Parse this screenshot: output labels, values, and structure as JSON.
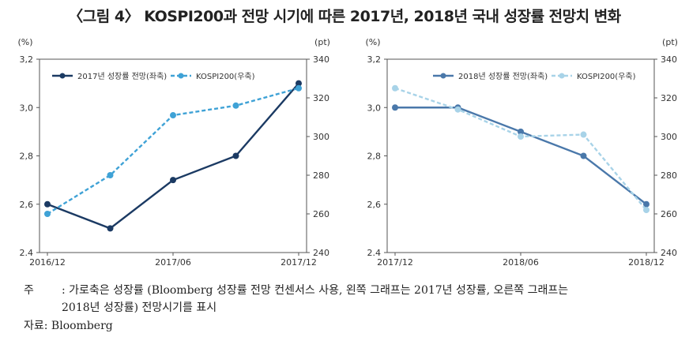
{
  "title": "〈그림 4〉 KOSPI200과 전망 시기에 따른 2017년, 2018년 국내 성장률 전망치 변화",
  "note_label": "주",
  "note_line1": ": 가로축은 성장률 (Bloomberg 성장률 전망 컨센서스 사용, 왼쪽 그래프는 2017년 성장률, 오른쪽 그래프는",
  "note_line2": "2018년 성장률) 전망시기를 표시",
  "source": "자료: Bloomberg",
  "colors": {
    "dark": "#1b3a63",
    "light": "#3fa2d6",
    "mid": "#4a78aa",
    "pale": "#a8d3e8",
    "axis": "#555555"
  },
  "chart_data": [
    {
      "type": "line",
      "left_unit": "(%)",
      "right_unit": "(pt)",
      "ylim_left": [
        2.4,
        3.2
      ],
      "ylim_right": [
        240,
        340
      ],
      "left_ticks": [
        "2.4",
        "2,6",
        "2,8",
        "3,0",
        "3,2"
      ],
      "right_ticks": [
        "240",
        "260",
        "280",
        "300",
        "320",
        "340"
      ],
      "x_tick_labels": [
        "2016/12",
        "2017/06",
        "2017/12"
      ],
      "legend_position": "top-left",
      "series": [
        {
          "name": "2017년 성장률 전망(좌축)",
          "axis": "left",
          "style": "solid",
          "x": [
            "2016/12",
            "2017/03",
            "2017/06",
            "2017/09",
            "2017/12"
          ],
          "values": [
            2.6,
            2.5,
            2.7,
            2.8,
            3.1
          ]
        },
        {
          "name": "KOSPI200(우축)",
          "axis": "right",
          "style": "dashed",
          "x": [
            "2016/12",
            "2017/03",
            "2017/06",
            "2017/09",
            "2017/12"
          ],
          "values": [
            260,
            280,
            311,
            316,
            325
          ]
        }
      ]
    },
    {
      "type": "line",
      "left_unit": "(%)",
      "right_unit": "(pt)",
      "ylim_left": [
        2.4,
        3.2
      ],
      "ylim_right": [
        240,
        340
      ],
      "left_ticks": [
        "2.4",
        "2,6",
        "2,8",
        "3,0",
        "3,2"
      ],
      "right_ticks": [
        "240",
        "260",
        "280",
        "300",
        "320",
        "340"
      ],
      "x_tick_labels": [
        "2017/12",
        "2018/06",
        "2018/12"
      ],
      "legend_position": "top-right",
      "series": [
        {
          "name": "2018년 성장률 전망(좌축)",
          "axis": "left",
          "style": "solid",
          "x": [
            "2017/12",
            "2018/03",
            "2018/06",
            "2018/09",
            "2018/12"
          ],
          "values": [
            3.0,
            3.0,
            2.9,
            2.8,
            2.6
          ]
        },
        {
          "name": "KOSPI200(우축)",
          "axis": "right",
          "style": "dashed",
          "x": [
            "2017/12",
            "2018/03",
            "2018/06",
            "2018/09",
            "2018/12"
          ],
          "values": [
            325,
            314,
            300,
            301,
            262
          ]
        }
      ]
    }
  ]
}
